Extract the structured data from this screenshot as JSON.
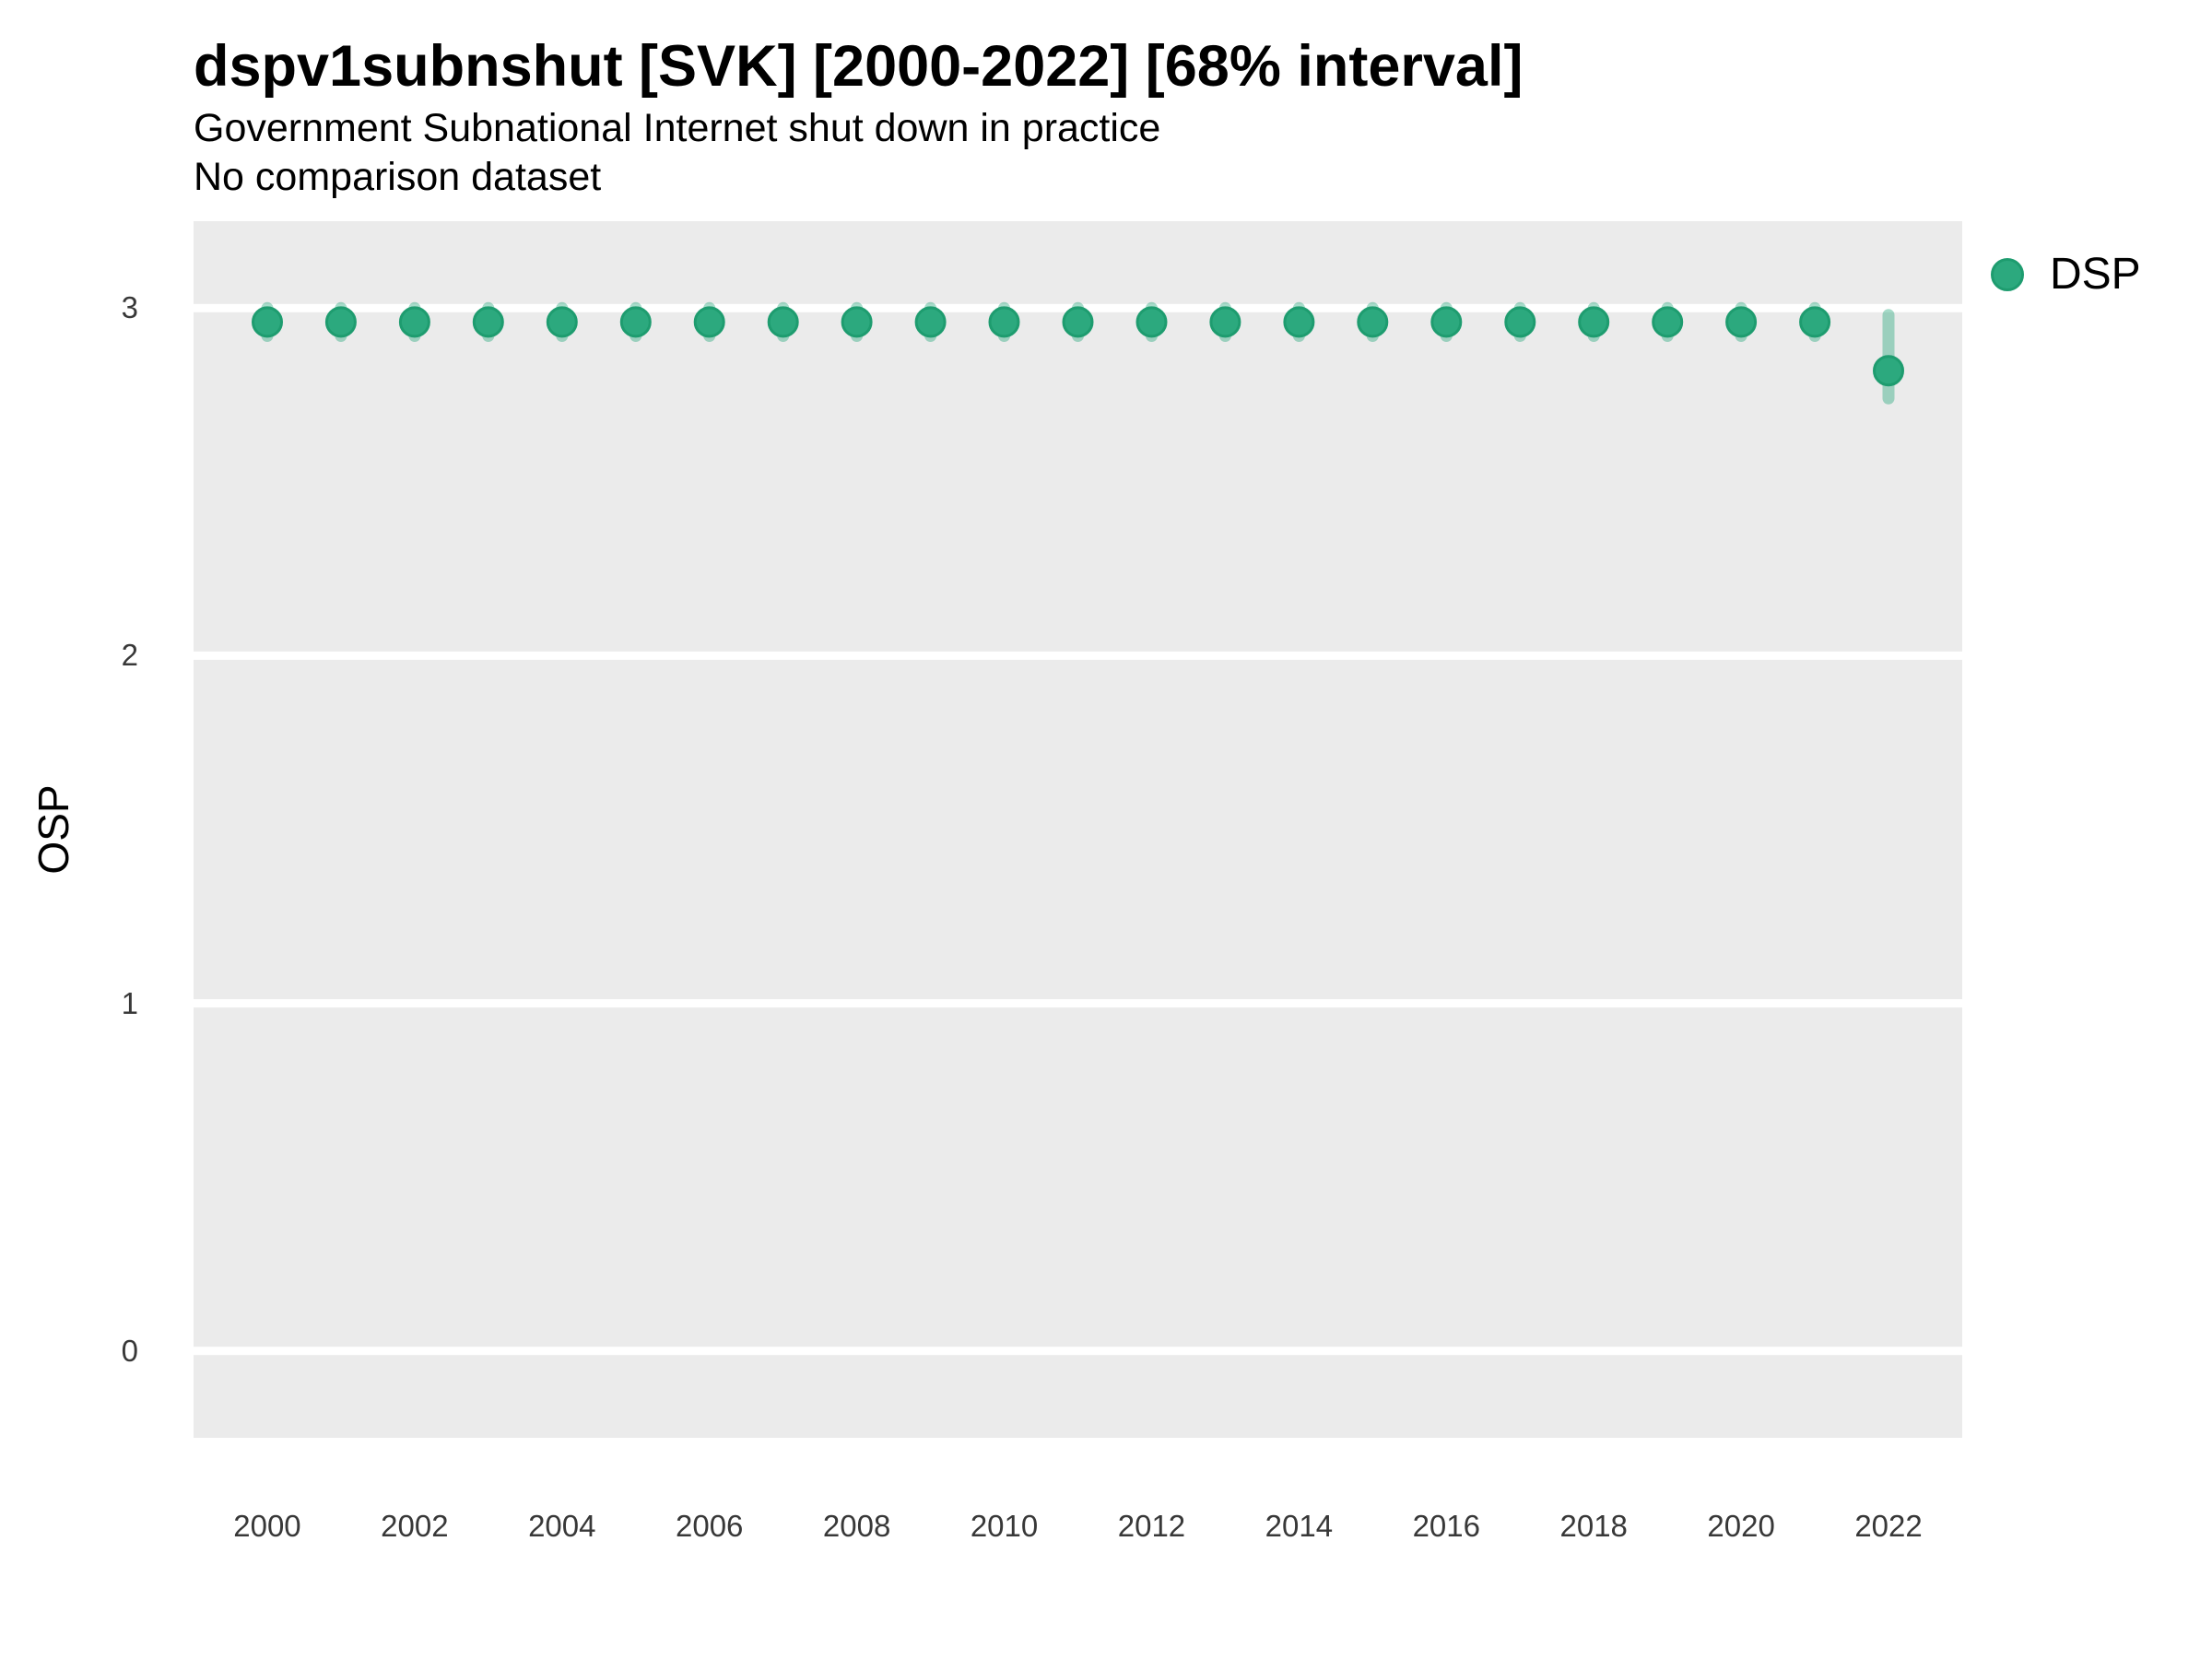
{
  "header": {
    "title": "dspv1subnshut [SVK] [2000-2022] [68% interval]",
    "subtitle": "Government Subnational Internet shut down in practice",
    "note": "No comparison dataset"
  },
  "legend": {
    "items": [
      {
        "label": "DSP",
        "color": "#2ca97e"
      }
    ]
  },
  "axes": {
    "y_label": "OSP",
    "y_ticks": [
      0,
      1,
      2,
      3
    ],
    "x_ticks": [
      2000,
      2002,
      2004,
      2006,
      2008,
      2010,
      2012,
      2014,
      2016,
      2018,
      2020,
      2022
    ]
  },
  "colors": {
    "panel_background": "#ebebeb",
    "gridline": "#ffffff",
    "point_fill": "#2ca97e",
    "point_stroke": "#1e9c6f",
    "interval": "#2ca97e",
    "tick_text": "#383838",
    "text": "#000000"
  },
  "chart_data": {
    "type": "scatter",
    "title": "dspv1subnshut [SVK] [2000-2022] [68% interval]",
    "subtitle": "Government Subnational Internet shut down in practice",
    "note": "No comparison dataset",
    "xlabel": "",
    "ylabel": "OSP",
    "xlim": [
      1999,
      2023
    ],
    "ylim": [
      -0.25,
      3.25
    ],
    "grid": "horizontal-major-only",
    "legend_position": "right",
    "series": [
      {
        "name": "DSP",
        "x": [
          2000,
          2001,
          2002,
          2003,
          2004,
          2005,
          2006,
          2007,
          2008,
          2009,
          2010,
          2011,
          2012,
          2013,
          2014,
          2015,
          2016,
          2017,
          2018,
          2019,
          2020,
          2021,
          2022
        ],
        "y": [
          2.96,
          2.96,
          2.96,
          2.96,
          2.96,
          2.96,
          2.96,
          2.96,
          2.96,
          2.96,
          2.96,
          2.96,
          2.96,
          2.96,
          2.96,
          2.96,
          2.96,
          2.96,
          2.96,
          2.96,
          2.96,
          2.96,
          2.82
        ],
        "interval_low": [
          2.92,
          2.92,
          2.92,
          2.92,
          2.92,
          2.92,
          2.92,
          2.92,
          2.92,
          2.92,
          2.92,
          2.92,
          2.92,
          2.92,
          2.92,
          2.92,
          2.92,
          2.92,
          2.92,
          2.92,
          2.92,
          2.92,
          2.74
        ],
        "interval_high": [
          3.0,
          3.0,
          3.0,
          3.0,
          3.0,
          3.0,
          3.0,
          3.0,
          3.0,
          3.0,
          3.0,
          3.0,
          3.0,
          3.0,
          3.0,
          3.0,
          3.0,
          3.0,
          3.0,
          3.0,
          3.0,
          3.0,
          2.98
        ],
        "interval_label": "68% interval"
      }
    ]
  }
}
